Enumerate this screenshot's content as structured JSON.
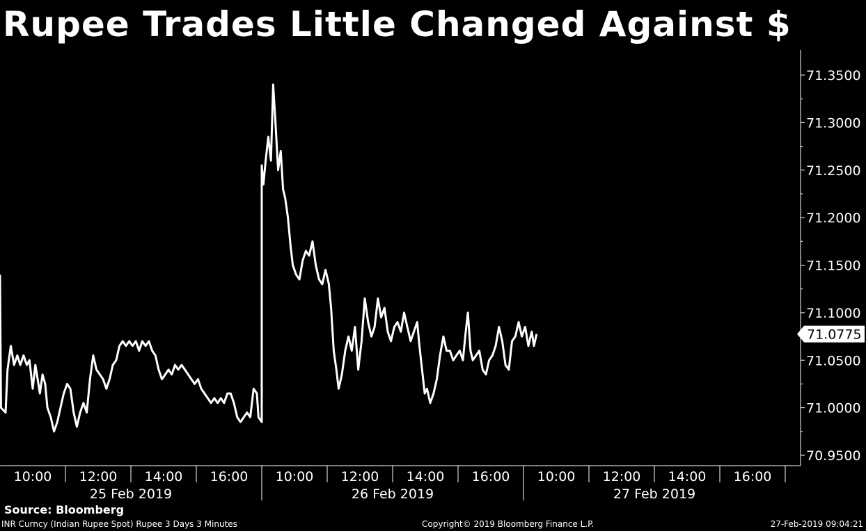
{
  "title": "Rupee Trades Little Changed Against $",
  "source": "Source: Bloomberg",
  "footer": {
    "left": "INR Curncy (Indian Rupee Spot) Rupee 3 Days 3 Minutes",
    "center": "Copyright© 2019 Bloomberg Finance L.P.",
    "right": "27-Feb-2019 09:04:21"
  },
  "colors": {
    "background": "#000000",
    "line": "#ffffff",
    "axis": "#ffffff"
  },
  "chart_data": {
    "type": "line",
    "title": "Rupee Trades Little Changed Against $",
    "xlabel": "",
    "ylabel": "",
    "ylim": [
      70.94,
      71.375
    ],
    "y_ticks": [
      "71.3500",
      "71.3000",
      "71.2500",
      "71.2000",
      "71.1500",
      "71.1000",
      "71.0500",
      "71.0000",
      "70.9500"
    ],
    "y_tick_values": [
      71.35,
      71.3,
      71.25,
      71.2,
      71.15,
      71.1,
      71.05,
      71.0,
      70.95
    ],
    "last_value_label": "71.0775",
    "last_value": 71.0775,
    "grid": false,
    "y_axis_side": "right",
    "days": [
      {
        "date": "25 Feb 2019",
        "time_labels": [
          "10:00",
          "12:00",
          "14:00",
          "16:00"
        ]
      },
      {
        "date": "26 Feb 2019",
        "time_labels": [
          "10:00",
          "12:00",
          "14:00",
          "16:00"
        ]
      },
      {
        "date": "27 Feb 2019",
        "time_labels": [
          "10:00",
          "12:00",
          "14:00",
          "16:00"
        ]
      }
    ],
    "day_start_hour": 9,
    "day_end_hour": 17,
    "series": [
      {
        "points": [
          [
            0,
            9.0,
            71.14
          ],
          [
            0,
            9.03,
            71.0
          ],
          [
            0,
            9.17,
            70.995
          ],
          [
            0,
            9.23,
            71.04
          ],
          [
            0,
            9.33,
            71.065
          ],
          [
            0,
            9.43,
            71.045
          ],
          [
            0,
            9.53,
            71.055
          ],
          [
            0,
            9.62,
            71.045
          ],
          [
            0,
            9.72,
            71.055
          ],
          [
            0,
            9.82,
            71.045
          ],
          [
            0,
            9.9,
            71.05
          ],
          [
            0,
            10.0,
            71.02
          ],
          [
            0,
            10.08,
            71.045
          ],
          [
            0,
            10.15,
            71.03
          ],
          [
            0,
            10.22,
            71.015
          ],
          [
            0,
            10.3,
            71.035
          ],
          [
            0,
            10.38,
            71.025
          ],
          [
            0,
            10.45,
            71.0
          ],
          [
            0,
            10.55,
            70.99
          ],
          [
            0,
            10.65,
            70.975
          ],
          [
            0,
            10.75,
            70.985
          ],
          [
            0,
            10.85,
            71.0
          ],
          [
            0,
            10.95,
            71.015
          ],
          [
            0,
            11.05,
            71.025
          ],
          [
            0,
            11.15,
            71.02
          ],
          [
            0,
            11.25,
            70.995
          ],
          [
            0,
            11.35,
            70.98
          ],
          [
            0,
            11.45,
            70.995
          ],
          [
            0,
            11.55,
            71.005
          ],
          [
            0,
            11.65,
            70.995
          ],
          [
            0,
            11.75,
            71.03
          ],
          [
            0,
            11.85,
            71.055
          ],
          [
            0,
            11.95,
            71.04
          ],
          [
            0,
            12.05,
            71.035
          ],
          [
            0,
            12.15,
            71.03
          ],
          [
            0,
            12.25,
            71.02
          ],
          [
            0,
            12.35,
            71.03
          ],
          [
            0,
            12.45,
            71.045
          ],
          [
            0,
            12.55,
            71.05
          ],
          [
            0,
            12.65,
            71.065
          ],
          [
            0,
            12.75,
            71.07
          ],
          [
            0,
            12.85,
            71.065
          ],
          [
            0,
            12.95,
            71.07
          ],
          [
            0,
            13.05,
            71.065
          ],
          [
            0,
            13.15,
            71.07
          ],
          [
            0,
            13.25,
            71.06
          ],
          [
            0,
            13.35,
            71.07
          ],
          [
            0,
            13.45,
            71.065
          ],
          [
            0,
            13.55,
            71.07
          ],
          [
            0,
            13.65,
            71.06
          ],
          [
            0,
            13.75,
            71.055
          ],
          [
            0,
            13.85,
            71.04
          ],
          [
            0,
            13.95,
            71.03
          ],
          [
            0,
            14.05,
            71.035
          ],
          [
            0,
            14.15,
            71.04
          ],
          [
            0,
            14.25,
            71.035
          ],
          [
            0,
            14.35,
            71.045
          ],
          [
            0,
            14.45,
            71.04
          ],
          [
            0,
            14.55,
            71.045
          ],
          [
            0,
            14.65,
            71.04
          ],
          [
            0,
            14.75,
            71.035
          ],
          [
            0,
            14.85,
            71.03
          ],
          [
            0,
            14.95,
            71.025
          ],
          [
            0,
            15.05,
            71.03
          ],
          [
            0,
            15.15,
            71.02
          ],
          [
            0,
            15.25,
            71.015
          ],
          [
            0,
            15.35,
            71.01
          ],
          [
            0,
            15.45,
            71.005
          ],
          [
            0,
            15.55,
            71.01
          ],
          [
            0,
            15.65,
            71.005
          ],
          [
            0,
            15.75,
            71.01
          ],
          [
            0,
            15.85,
            71.005
          ],
          [
            0,
            15.95,
            71.015
          ],
          [
            0,
            16.05,
            71.015
          ],
          [
            0,
            16.15,
            71.005
          ],
          [
            0,
            16.25,
            70.99
          ],
          [
            0,
            16.35,
            70.985
          ],
          [
            0,
            16.45,
            70.99
          ],
          [
            0,
            16.55,
            70.995
          ],
          [
            0,
            16.65,
            70.99
          ],
          [
            0,
            16.75,
            71.02
          ],
          [
            0,
            16.85,
            71.015
          ],
          [
            0,
            16.9,
            70.99
          ],
          [
            0,
            17.0,
            70.985
          ],
          [
            1,
            9.0,
            71.255
          ],
          [
            1,
            9.05,
            71.235
          ],
          [
            1,
            9.12,
            71.26
          ],
          [
            1,
            9.2,
            71.285
          ],
          [
            1,
            9.28,
            71.26
          ],
          [
            1,
            9.35,
            71.34
          ],
          [
            1,
            9.42,
            71.3
          ],
          [
            1,
            9.5,
            71.25
          ],
          [
            1,
            9.58,
            71.27
          ],
          [
            1,
            9.65,
            71.23
          ],
          [
            1,
            9.72,
            71.22
          ],
          [
            1,
            9.8,
            71.2
          ],
          [
            1,
            9.88,
            71.17
          ],
          [
            1,
            9.95,
            71.15
          ],
          [
            1,
            10.05,
            71.14
          ],
          [
            1,
            10.15,
            71.135
          ],
          [
            1,
            10.25,
            71.155
          ],
          [
            1,
            10.35,
            71.165
          ],
          [
            1,
            10.45,
            71.16
          ],
          [
            1,
            10.55,
            71.175
          ],
          [
            1,
            10.65,
            71.15
          ],
          [
            1,
            10.75,
            71.135
          ],
          [
            1,
            10.85,
            71.13
          ],
          [
            1,
            10.95,
            71.145
          ],
          [
            1,
            11.05,
            71.13
          ],
          [
            1,
            11.12,
            71.105
          ],
          [
            1,
            11.2,
            71.06
          ],
          [
            1,
            11.28,
            71.04
          ],
          [
            1,
            11.35,
            71.02
          ],
          [
            1,
            11.45,
            71.035
          ],
          [
            1,
            11.55,
            71.06
          ],
          [
            1,
            11.65,
            71.075
          ],
          [
            1,
            11.75,
            71.06
          ],
          [
            1,
            11.85,
            71.085
          ],
          [
            1,
            11.95,
            71.04
          ],
          [
            1,
            12.05,
            71.07
          ],
          [
            1,
            12.15,
            71.115
          ],
          [
            1,
            12.25,
            71.09
          ],
          [
            1,
            12.35,
            71.075
          ],
          [
            1,
            12.45,
            71.085
          ],
          [
            1,
            12.55,
            71.115
          ],
          [
            1,
            12.65,
            71.095
          ],
          [
            1,
            12.75,
            71.105
          ],
          [
            1,
            12.85,
            71.08
          ],
          [
            1,
            12.95,
            71.07
          ],
          [
            1,
            13.05,
            71.085
          ],
          [
            1,
            13.15,
            71.09
          ],
          [
            1,
            13.25,
            71.08
          ],
          [
            1,
            13.35,
            71.1
          ],
          [
            1,
            13.45,
            71.085
          ],
          [
            1,
            13.55,
            71.07
          ],
          [
            1,
            13.65,
            71.08
          ],
          [
            1,
            13.75,
            71.09
          ],
          [
            1,
            13.82,
            71.065
          ],
          [
            1,
            13.9,
            71.04
          ],
          [
            1,
            13.98,
            71.015
          ],
          [
            1,
            14.05,
            71.02
          ],
          [
            1,
            14.15,
            71.005
          ],
          [
            1,
            14.25,
            71.015
          ],
          [
            1,
            14.35,
            71.03
          ],
          [
            1,
            14.45,
            71.055
          ],
          [
            1,
            14.55,
            71.075
          ],
          [
            1,
            14.65,
            71.06
          ],
          [
            1,
            14.75,
            71.06
          ],
          [
            1,
            14.85,
            71.05
          ],
          [
            1,
            14.95,
            71.055
          ],
          [
            1,
            15.05,
            71.06
          ],
          [
            1,
            15.15,
            71.05
          ],
          [
            1,
            15.22,
            71.075
          ],
          [
            1,
            15.3,
            71.1
          ],
          [
            1,
            15.38,
            71.06
          ],
          [
            1,
            15.45,
            71.05
          ],
          [
            1,
            15.55,
            71.055
          ],
          [
            1,
            15.65,
            71.06
          ],
          [
            1,
            15.75,
            71.04
          ],
          [
            1,
            15.85,
            71.035
          ],
          [
            1,
            15.95,
            71.05
          ],
          [
            1,
            16.05,
            71.055
          ],
          [
            1,
            16.15,
            71.065
          ],
          [
            1,
            16.25,
            71.085
          ],
          [
            1,
            16.35,
            71.07
          ],
          [
            1,
            16.45,
            71.045
          ],
          [
            1,
            16.55,
            71.04
          ],
          [
            1,
            16.65,
            71.07
          ],
          [
            1,
            16.75,
            71.075
          ],
          [
            1,
            16.85,
            71.09
          ],
          [
            1,
            16.95,
            71.075
          ],
          [
            1,
            17.05,
            71.085
          ],
          [
            1,
            17.15,
            71.065
          ],
          [
            1,
            17.25,
            71.08
          ],
          [
            1,
            17.32,
            71.065
          ],
          [
            1,
            17.4,
            71.0775
          ]
        ]
      }
    ]
  }
}
